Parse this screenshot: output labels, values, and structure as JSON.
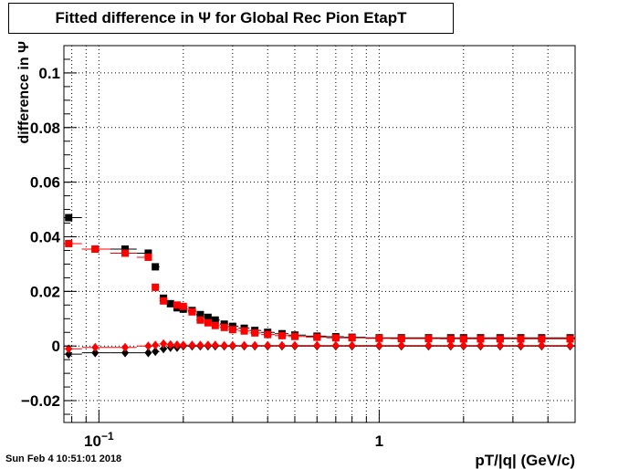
{
  "title": "Fitted difference in  Ψ  for Global Rec Pion EtapT",
  "timestamp": "Sun Feb  4 10:51:01 2018",
  "colors": {
    "series_black": "#000000",
    "series_red": "#ff0000",
    "grid": "#000000"
  },
  "chart_data": {
    "type": "scatter",
    "title": "Fitted difference in  Ψ  for Global Rec Pion EtapT",
    "xlabel": "pT/|q| (GeV/c)",
    "ylabel": "difference in  Ψ",
    "xscale": "log",
    "xlim": [
      0.075,
      5.0
    ],
    "ylim": [
      -0.028,
      0.11
    ],
    "grid": true,
    "legend": "none",
    "x_ticks": [
      {
        "value": 0.1,
        "label": "10",
        "sup": "−1"
      },
      {
        "value": 1.0,
        "label": "1",
        "sup": ""
      }
    ],
    "y_ticks": [
      {
        "value": -0.02,
        "label": "−0.02"
      },
      {
        "value": 0,
        "label": "0"
      },
      {
        "value": 0.02,
        "label": "0.02"
      },
      {
        "value": 0.04,
        "label": "0.04"
      },
      {
        "value": 0.06,
        "label": "0.06"
      },
      {
        "value": 0.08,
        "label": "0.08"
      },
      {
        "value": 0.1,
        "label": "0.1"
      }
    ],
    "series": [
      {
        "marker": "square",
        "color": "#000000",
        "points": [
          [
            0.078,
            0.047
          ],
          [
            0.097,
            0.0355
          ],
          [
            0.124,
            0.0355
          ],
          [
            0.15,
            0.034
          ],
          [
            0.159,
            0.029
          ],
          [
            0.17,
            0.0175
          ],
          [
            0.18,
            0.0155
          ],
          [
            0.19,
            0.014
          ],
          [
            0.2,
            0.0135
          ],
          [
            0.215,
            0.013
          ],
          [
            0.23,
            0.0115
          ],
          [
            0.245,
            0.0105
          ],
          [
            0.26,
            0.0095
          ],
          [
            0.28,
            0.008
          ],
          [
            0.3,
            0.0072
          ],
          [
            0.33,
            0.0065
          ],
          [
            0.36,
            0.0057
          ],
          [
            0.4,
            0.005
          ],
          [
            0.45,
            0.0045
          ],
          [
            0.5,
            0.004
          ],
          [
            0.6,
            0.0036
          ],
          [
            0.7,
            0.0034
          ],
          [
            0.8,
            0.0032
          ],
          [
            1.0,
            0.003
          ],
          [
            1.2,
            0.003
          ],
          [
            1.5,
            0.003
          ],
          [
            1.8,
            0.003
          ],
          [
            2.0,
            0.003
          ],
          [
            2.3,
            0.003
          ],
          [
            2.7,
            0.003
          ],
          [
            3.2,
            0.003
          ],
          [
            3.8,
            0.003
          ],
          [
            4.8,
            0.003
          ]
        ]
      },
      {
        "marker": "square",
        "color": "#ff0000",
        "points": [
          [
            0.078,
            0.0375
          ],
          [
            0.097,
            0.0355
          ],
          [
            0.124,
            0.034
          ],
          [
            0.15,
            0.0325
          ],
          [
            0.159,
            0.0215
          ],
          [
            0.17,
            0.0165
          ],
          [
            0.19,
            0.015
          ],
          [
            0.2,
            0.0145
          ],
          [
            0.215,
            0.0125
          ],
          [
            0.23,
            0.0095
          ],
          [
            0.245,
            0.0085
          ],
          [
            0.26,
            0.0075
          ],
          [
            0.28,
            0.0068
          ],
          [
            0.3,
            0.006
          ],
          [
            0.33,
            0.0055
          ],
          [
            0.36,
            0.0048
          ],
          [
            0.4,
            0.0042
          ],
          [
            0.45,
            0.0038
          ],
          [
            0.5,
            0.0035
          ],
          [
            0.6,
            0.0032
          ],
          [
            0.7,
            0.003
          ],
          [
            0.8,
            0.003
          ],
          [
            1.0,
            0.0028
          ],
          [
            1.2,
            0.0027
          ],
          [
            1.5,
            0.0027
          ],
          [
            1.8,
            0.0026
          ],
          [
            2.0,
            0.0026
          ],
          [
            2.3,
            0.0026
          ],
          [
            2.7,
            0.0026
          ],
          [
            3.2,
            0.0026
          ],
          [
            3.8,
            0.0026
          ],
          [
            4.8,
            0.0026
          ]
        ]
      },
      {
        "marker": "diamond",
        "color": "#000000",
        "points": [
          [
            0.078,
            -0.003
          ],
          [
            0.097,
            -0.0025
          ],
          [
            0.124,
            -0.0025
          ],
          [
            0.15,
            -0.0025
          ],
          [
            0.159,
            -0.002
          ],
          [
            0.17,
            -0.001
          ],
          [
            0.18,
            -0.0005
          ],
          [
            0.19,
            -0.0005
          ],
          [
            0.2,
            0
          ],
          [
            0.215,
            0
          ],
          [
            0.23,
            0
          ],
          [
            0.245,
            0
          ],
          [
            0.26,
            0
          ],
          [
            0.28,
            0
          ],
          [
            0.3,
            0
          ],
          [
            0.33,
            0
          ],
          [
            0.36,
            0
          ],
          [
            0.4,
            0
          ],
          [
            0.45,
            0
          ],
          [
            0.5,
            0
          ],
          [
            0.6,
            0
          ],
          [
            0.7,
            0
          ],
          [
            0.8,
            0
          ],
          [
            1.0,
            0
          ],
          [
            1.2,
            0
          ],
          [
            1.5,
            0
          ],
          [
            1.8,
            0
          ],
          [
            2.0,
            0
          ],
          [
            2.3,
            0
          ],
          [
            2.7,
            0
          ],
          [
            3.2,
            0
          ],
          [
            3.8,
            0
          ],
          [
            4.8,
            0
          ]
        ]
      },
      {
        "marker": "diamond",
        "color": "#ff0000",
        "points": [
          [
            0.078,
            -0.001
          ],
          [
            0.097,
            -0.0005
          ],
          [
            0.124,
            -0.0005
          ],
          [
            0.15,
            0
          ],
          [
            0.159,
            0.0003
          ],
          [
            0.17,
            0.0008
          ],
          [
            0.18,
            0.0005
          ],
          [
            0.19,
            0.0004
          ],
          [
            0.2,
            0.0003
          ],
          [
            0.215,
            0.0003
          ],
          [
            0.23,
            0.0003
          ],
          [
            0.245,
            0.0003
          ],
          [
            0.26,
            0.0003
          ],
          [
            0.28,
            0.0002
          ],
          [
            0.3,
            0.0002
          ],
          [
            0.33,
            0.0002
          ],
          [
            0.36,
            0.0002
          ],
          [
            0.4,
            0.0002
          ],
          [
            0.45,
            0.0002
          ],
          [
            0.5,
            0.0002
          ],
          [
            0.6,
            0.0002
          ],
          [
            0.7,
            0.0002
          ],
          [
            0.8,
            0.0002
          ],
          [
            1.0,
            0.0002
          ],
          [
            1.2,
            0.0002
          ],
          [
            1.5,
            0.0002
          ],
          [
            1.8,
            0.0002
          ],
          [
            2.0,
            0.0002
          ],
          [
            2.3,
            0.0002
          ],
          [
            2.7,
            0.0002
          ],
          [
            3.2,
            0.0002
          ],
          [
            3.8,
            0.0002
          ],
          [
            4.8,
            0.0002
          ]
        ]
      }
    ]
  }
}
